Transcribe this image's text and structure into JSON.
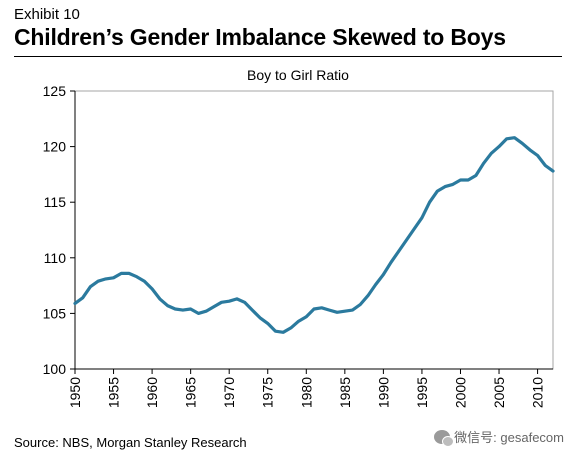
{
  "header": {
    "exhibit": "Exhibit 10",
    "title": "Children’s Gender Imbalance Skewed to Boys"
  },
  "footer": {
    "source": "Source: NBS, Morgan Stanley Research",
    "watermark": "微信号: gesafecom"
  },
  "colors": {
    "line": "#2b7a9e",
    "axis": "#000000",
    "border": "#a6a6a6"
  },
  "chart_data": {
    "type": "line",
    "title": "Boy to Girl Ratio",
    "xlabel": "",
    "ylabel": "",
    "xlim": [
      1950,
      2012
    ],
    "ylim": [
      100,
      125
    ],
    "yticks": [
      100,
      105,
      110,
      115,
      120,
      125
    ],
    "xticks": [
      1950,
      1955,
      1960,
      1965,
      1970,
      1975,
      1980,
      1985,
      1990,
      1995,
      2000,
      2005,
      2010
    ],
    "grid": false,
    "legend": "none",
    "series": [
      {
        "x": [
          1950,
          1951,
          1952,
          1953,
          1954,
          1955,
          1956,
          1957,
          1958,
          1959,
          1960,
          1961,
          1962,
          1963,
          1964,
          1965,
          1966,
          1967,
          1968,
          1969,
          1970,
          1971,
          1972,
          1973,
          1974,
          1975,
          1976,
          1977,
          1978,
          1979,
          1980,
          1981,
          1982,
          1983,
          1984,
          1985,
          1986,
          1987,
          1988,
          1989,
          1990,
          1991,
          1992,
          1993,
          1994,
          1995,
          1996,
          1997,
          1998,
          1999,
          2000,
          2001,
          2002,
          2003,
          2004,
          2005,
          2006,
          2007,
          2008,
          2009,
          2010,
          2011,
          2012
        ],
        "values": [
          105.9,
          106.4,
          107.4,
          107.9,
          108.1,
          108.2,
          108.6,
          108.6,
          108.3,
          107.9,
          107.2,
          106.3,
          105.7,
          105.4,
          105.3,
          105.4,
          105.0,
          105.2,
          105.6,
          106.0,
          106.1,
          106.3,
          106.0,
          105.3,
          104.6,
          104.1,
          103.4,
          103.3,
          103.7,
          104.3,
          104.7,
          105.4,
          105.5,
          105.3,
          105.1,
          105.2,
          105.3,
          105.8,
          106.6,
          107.6,
          108.5,
          109.6,
          110.6,
          111.6,
          112.6,
          113.6,
          115.0,
          116.0,
          116.4,
          116.6,
          117.0,
          117.0,
          117.4,
          118.5,
          119.4,
          120.0,
          120.7,
          120.8,
          120.3,
          119.7,
          119.2,
          118.3,
          117.8
        ]
      }
    ]
  }
}
